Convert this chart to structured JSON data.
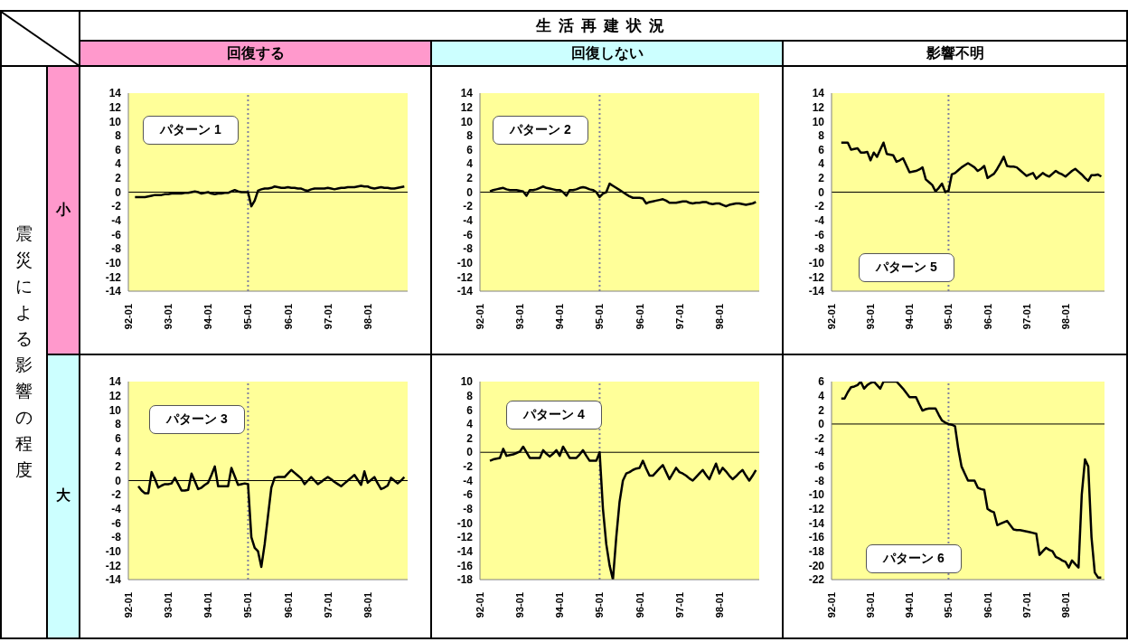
{
  "chart_data": [
    {
      "type": "other",
      "title": "生活再建状況",
      "annotations": [
        "回復する",
        "回復しない",
        "影響不明",
        "震災による影響の程度",
        "小",
        "大"
      ]
    },
    {
      "type": "line",
      "annotations": [
        "パターン 1"
      ],
      "ylim": [
        -14,
        14
      ],
      "yticks": [
        -14,
        -12,
        -10,
        -8,
        -6,
        -4,
        -2,
        0,
        2,
        4,
        6,
        8,
        10,
        12,
        14
      ],
      "grid": false,
      "marker": "none",
      "ref_lines": [
        {
          "axis": "x",
          "value": "95-01",
          "color": "#8080a0",
          "line_style": "dotted"
        },
        {
          "axis": "y",
          "value": 0,
          "color": "#000000",
          "line_style": "solid"
        }
      ],
      "categories": [
        "92-01",
        null,
        null,
        null,
        null,
        null,
        null,
        null,
        null,
        null,
        null,
        null,
        "93-01",
        null,
        null,
        null,
        null,
        null,
        null,
        null,
        null,
        null,
        null,
        null,
        "94-01",
        null,
        null,
        null,
        null,
        null,
        null,
        null,
        null,
        null,
        null,
        null,
        "95-01",
        null,
        null,
        null,
        null,
        null,
        null,
        null,
        null,
        null,
        null,
        null,
        "96-01",
        null,
        null,
        null,
        null,
        null,
        null,
        null,
        null,
        null,
        null,
        null,
        "97-01",
        null,
        null,
        null,
        null,
        null,
        null,
        null,
        null,
        null,
        null,
        null,
        "98-01",
        null,
        null,
        null,
        null,
        null,
        null,
        null,
        null,
        null,
        null,
        null
      ],
      "series": [
        {
          "color": "#000000",
          "values": [
            null,
            null,
            -0.7,
            -0.7,
            -0.7,
            -0.7,
            -0.6,
            -0.5,
            -0.4,
            -0.4,
            -0.4,
            -0.3,
            -0.3,
            -0.2,
            -0.2,
            -0.2,
            -0.2,
            -0.1,
            -0.1,
            0,
            0.1,
            0,
            -0.2,
            -0.1,
            0,
            -0.2,
            -0.3,
            -0.2,
            -0.2,
            -0.1,
            -0.1,
            0.1,
            0.3,
            0.1,
            0,
            0,
            0,
            -2,
            -1.2,
            0.2,
            0.4,
            0.5,
            0.5,
            0.6,
            0.8,
            0.7,
            0.6,
            0.6,
            0.7,
            0.6,
            0.6,
            0.5,
            0.5,
            0.3,
            0.2,
            0.4,
            0.5,
            0.5,
            0.5,
            0.5,
            0.6,
            0.5,
            0.4,
            0.5,
            0.6,
            0.6,
            0.7,
            0.7,
            0.7,
            0.8,
            0.9,
            0.8,
            0.8,
            0.6,
            0.5,
            0.6,
            0.7,
            0.6,
            0.6,
            0.5,
            0.5,
            0.6,
            0.7,
            0.8
          ]
        }
      ]
    },
    {
      "type": "line",
      "annotations": [
        "パターン 2"
      ],
      "ylim": [
        -14,
        14
      ],
      "yticks": [
        -14,
        -12,
        -10,
        -8,
        -6,
        -4,
        -2,
        0,
        2,
        4,
        6,
        8,
        10,
        12,
        14
      ],
      "grid": false,
      "marker": "none",
      "ref_lines": [
        {
          "axis": "x",
          "value": "95-01",
          "color": "#8080a0",
          "line_style": "dotted"
        },
        {
          "axis": "y",
          "value": 0,
          "color": "#000000",
          "line_style": "solid"
        }
      ],
      "categories": [
        "92-01",
        null,
        null,
        null,
        null,
        null,
        null,
        null,
        null,
        null,
        null,
        null,
        "93-01",
        null,
        null,
        null,
        null,
        null,
        null,
        null,
        null,
        null,
        null,
        null,
        "94-01",
        null,
        null,
        null,
        null,
        null,
        null,
        null,
        null,
        null,
        null,
        null,
        "95-01",
        null,
        null,
        null,
        null,
        null,
        null,
        null,
        null,
        null,
        null,
        null,
        "96-01",
        null,
        null,
        null,
        null,
        null,
        null,
        null,
        null,
        null,
        null,
        null,
        "97-01",
        null,
        null,
        null,
        null,
        null,
        null,
        null,
        null,
        null,
        null,
        null,
        "98-01",
        null,
        null,
        null,
        null,
        null,
        null,
        null,
        null,
        null,
        null,
        null
      ],
      "series": [
        {
          "color": "#000000",
          "values": [
            null,
            null,
            null,
            0.1,
            0.3,
            0.4,
            0.5,
            0.6,
            0.4,
            0.3,
            0.3,
            0.3,
            0.2,
            0.1,
            -0.5,
            0.3,
            0.3,
            0.4,
            0.6,
            0.8,
            0.6,
            0.5,
            0.4,
            0.3,
            0.3,
            0,
            -0.5,
            0.3,
            0.3,
            0.4,
            0.6,
            0.7,
            0.6,
            0.4,
            0.3,
            0,
            -0.7,
            -0.2,
            0,
            1.2,
            0.9,
            0.6,
            0.3,
            0,
            -0.3,
            -0.6,
            -0.8,
            -0.8,
            -0.8,
            -0.9,
            -1.6,
            -1.4,
            -1.3,
            -1.2,
            -1.1,
            -1.0,
            -1.2,
            -1.5,
            -1.5,
            -1.5,
            -1.4,
            -1.3,
            -1.3,
            -1.5,
            -1.6,
            -1.5,
            -1.5,
            -1.4,
            -1.4,
            -1.6,
            -1.7,
            -1.6,
            -1.6,
            -1.8,
            -2.0,
            -1.8,
            -1.7,
            -1.6,
            -1.6,
            -1.7,
            -1.8,
            -1.7,
            -1.6,
            -1.4
          ]
        }
      ]
    },
    {
      "type": "line",
      "annotations": [
        "パターン 5"
      ],
      "ylim": [
        -14,
        14
      ],
      "yticks": [
        -14,
        -12,
        -10,
        -8,
        -6,
        -4,
        -2,
        0,
        2,
        4,
        6,
        8,
        10,
        12,
        14
      ],
      "grid": false,
      "marker": "none",
      "ref_lines": [
        {
          "axis": "x",
          "value": "95-01",
          "color": "#8080a0",
          "line_style": "dotted"
        },
        {
          "axis": "y",
          "value": 0,
          "color": "#000000",
          "line_style": "solid"
        }
      ],
      "categories": [
        "92-01",
        null,
        null,
        null,
        null,
        null,
        null,
        null,
        null,
        null,
        null,
        null,
        "93-01",
        null,
        null,
        null,
        null,
        null,
        null,
        null,
        null,
        null,
        null,
        null,
        "94-01",
        null,
        null,
        null,
        null,
        null,
        null,
        null,
        null,
        null,
        null,
        null,
        "95-01",
        null,
        null,
        null,
        null,
        null,
        null,
        null,
        null,
        null,
        null,
        null,
        "96-01",
        null,
        null,
        null,
        null,
        null,
        null,
        null,
        null,
        null,
        null,
        null,
        "97-01",
        null,
        null,
        null,
        null,
        null,
        null,
        null,
        null,
        null,
        null,
        null,
        "98-01",
        null,
        null,
        null,
        null,
        null,
        null,
        null,
        null,
        null,
        null,
        null
      ],
      "series": [
        {
          "color": "#000000",
          "values": [
            null,
            null,
            null,
            7.0,
            7.0,
            7.0,
            6,
            6.1,
            6.2,
            5.6,
            5.6,
            5.7,
            4.5,
            5.6,
            5,
            6,
            7,
            5.4,
            5.3,
            5.2,
            4.3,
            4.5,
            4.8,
            3.8,
            2.8,
            2.9,
            3,
            3.2,
            3.5,
            1.8,
            1.4,
            1.0,
            0.1,
            0.6,
            1.2,
            0,
            0.2,
            2.5,
            2.7,
            3.1,
            3.5,
            3.8,
            4.1,
            3.8,
            3.5,
            3,
            3.3,
            3.7,
            2,
            2.3,
            2.6,
            3.3,
            4.1,
            5,
            3.7,
            3.6,
            3.6,
            3.5,
            3.1,
            2.7,
            2.3,
            2.5,
            2.7,
            1.9,
            2.3,
            2.7,
            2.4,
            2.2,
            2.6,
            3,
            2.7,
            2.5,
            2.2,
            2.6,
            3,
            3.3,
            2.9,
            2.5,
            2.0,
            1.6,
            2.4,
            2.4,
            2.5,
            2.2
          ]
        }
      ]
    },
    {
      "type": "line",
      "annotations": [
        "パターン 3"
      ],
      "ylim": [
        -14,
        14
      ],
      "yticks": [
        -14,
        -12,
        -10,
        -8,
        -6,
        -4,
        -2,
        0,
        2,
        4,
        6,
        8,
        10,
        12,
        14
      ],
      "grid": false,
      "marker": "none",
      "ref_lines": [
        {
          "axis": "x",
          "value": "95-01",
          "color": "#8080a0",
          "line_style": "dotted"
        },
        {
          "axis": "y",
          "value": 0,
          "color": "#000000",
          "line_style": "solid"
        }
      ],
      "categories": [
        "92-01",
        null,
        null,
        null,
        null,
        null,
        null,
        null,
        null,
        null,
        null,
        null,
        "93-01",
        null,
        null,
        null,
        null,
        null,
        null,
        null,
        null,
        null,
        null,
        null,
        "94-01",
        null,
        null,
        null,
        null,
        null,
        null,
        null,
        null,
        null,
        null,
        null,
        "95-01",
        null,
        null,
        null,
        null,
        null,
        null,
        null,
        null,
        null,
        null,
        null,
        "96-01",
        null,
        null,
        null,
        null,
        null,
        null,
        null,
        null,
        null,
        null,
        null,
        "97-01",
        null,
        null,
        null,
        null,
        null,
        null,
        null,
        null,
        null,
        null,
        null,
        "98-01",
        null,
        null,
        null,
        null,
        null,
        null,
        null,
        null,
        null,
        null,
        null
      ],
      "series": [
        {
          "color": "#000000",
          "values": [
            null,
            null,
            null,
            -0.8,
            -1.4,
            -1.8,
            -1.8,
            1.2,
            0.2,
            -1,
            -0.7,
            -0.5,
            -0.5,
            -0.4,
            0.4,
            -0.5,
            -1.4,
            -1.4,
            -1.3,
            1.0,
            -0.1,
            -1.2,
            -1.0,
            -0.6,
            -0.3,
            0.8,
            2.0,
            -0.8,
            -0.8,
            -0.8,
            -0.8,
            1.8,
            0.6,
            -0.6,
            -0.5,
            -0.4,
            -0.5,
            -8,
            -9.5,
            -10,
            -12.2,
            -9,
            -5,
            -1,
            0.4,
            0.5,
            0.5,
            0.5,
            1.0,
            1.5,
            1.1,
            0.7,
            0.3,
            -0.5,
            0,
            0.5,
            0,
            -0.5,
            -0.2,
            0.2,
            0.5,
            0.2,
            -0.2,
            -0.5,
            -0.8,
            -0.4,
            0,
            0.4,
            0.8,
            0.1,
            -0.6,
            1.3,
            -0.3,
            0.1,
            0.5,
            -0.4,
            -1.2,
            -1.0,
            -0.7,
            0.4,
            0,
            -0.4,
            0,
            0.5
          ]
        }
      ]
    },
    {
      "type": "line",
      "annotations": [
        "パターン 4"
      ],
      "ylim": [
        -18,
        10
      ],
      "yticks": [
        -18,
        -16,
        -14,
        -12,
        -10,
        -8,
        -6,
        -4,
        -2,
        0,
        2,
        4,
        6,
        8,
        10
      ],
      "grid": false,
      "marker": "none",
      "ref_lines": [
        {
          "axis": "x",
          "value": "95-01",
          "color": "#8080a0",
          "line_style": "dotted"
        },
        {
          "axis": "y",
          "value": 0,
          "color": "#000000",
          "line_style": "solid"
        }
      ],
      "categories": [
        "92-01",
        null,
        null,
        null,
        null,
        null,
        null,
        null,
        null,
        null,
        null,
        null,
        "93-01",
        null,
        null,
        null,
        null,
        null,
        null,
        null,
        null,
        null,
        null,
        null,
        "94-01",
        null,
        null,
        null,
        null,
        null,
        null,
        null,
        null,
        null,
        null,
        null,
        "95-01",
        null,
        null,
        null,
        null,
        null,
        null,
        null,
        null,
        null,
        null,
        null,
        "96-01",
        null,
        null,
        null,
        null,
        null,
        null,
        null,
        null,
        null,
        null,
        null,
        "97-01",
        null,
        null,
        null,
        null,
        null,
        null,
        null,
        null,
        null,
        null,
        null,
        "98-01",
        null,
        null,
        null,
        null,
        null,
        null,
        null,
        null,
        null,
        null,
        null
      ],
      "series": [
        {
          "color": "#000000",
          "values": [
            null,
            null,
            null,
            -1.2,
            -1.0,
            -0.9,
            -0.8,
            0.5,
            -0.5,
            -0.4,
            -0.3,
            -0.1,
            0.1,
            0.8,
            0,
            -0.8,
            -0.8,
            -0.8,
            -0.8,
            0.3,
            -0.2,
            -0.6,
            -0.2,
            0.3,
            -0.5,
            0.8,
            0,
            -0.8,
            -0.8,
            -0.8,
            -0.3,
            0.3,
            -0.5,
            -1.2,
            -1.2,
            -1.2,
            0,
            -8,
            -13,
            -16,
            -18,
            -12,
            -7,
            -4,
            -3,
            -2.8,
            -2.5,
            -2.3,
            -2.2,
            -1.2,
            -2.3,
            -3.3,
            -3.3,
            -2.8,
            -2.3,
            -1.8,
            -2.8,
            -3.8,
            -3.0,
            -2.2,
            -2.8,
            -3.0,
            -3.3,
            -3.7,
            -4,
            -3.5,
            -3.0,
            -2.5,
            -3.2,
            -3.8,
            -2.7,
            -1.6,
            -3,
            -2.2,
            -2.7,
            -3.3,
            -3.8,
            -3.4,
            -2.9,
            -2.5,
            -3.3,
            -4,
            -3.3,
            -2.5
          ]
        }
      ]
    },
    {
      "type": "line",
      "annotations": [
        "パターン 6"
      ],
      "ylim": [
        -22,
        6
      ],
      "yticks": [
        -22,
        -20,
        -18,
        -16,
        -14,
        -12,
        -10,
        -8,
        -6,
        -4,
        -2,
        0,
        2,
        4,
        6
      ],
      "grid": false,
      "marker": "none",
      "ref_lines": [
        {
          "axis": "x",
          "value": "95-01",
          "color": "#8080a0",
          "line_style": "dotted"
        },
        {
          "axis": "y",
          "value": 0,
          "color": "#000000",
          "line_style": "solid"
        }
      ],
      "categories": [
        "92-01",
        null,
        null,
        null,
        null,
        null,
        null,
        null,
        null,
        null,
        null,
        null,
        "93-01",
        null,
        null,
        null,
        null,
        null,
        null,
        null,
        null,
        null,
        null,
        null,
        "94-01",
        null,
        null,
        null,
        null,
        null,
        null,
        null,
        null,
        null,
        null,
        null,
        "95-01",
        null,
        null,
        null,
        null,
        null,
        null,
        null,
        null,
        null,
        null,
        null,
        "96-01",
        null,
        null,
        null,
        null,
        null,
        null,
        null,
        null,
        null,
        null,
        null,
        "97-01",
        null,
        null,
        null,
        null,
        null,
        null,
        null,
        null,
        null,
        null,
        null,
        "98-01",
        null,
        null,
        null,
        null,
        null,
        null,
        null,
        null,
        null,
        null,
        null
      ],
      "series": [
        {
          "color": "#000000",
          "values": [
            null,
            null,
            null,
            3.6,
            3.6,
            4.5,
            5.2,
            5.3,
            5.5,
            6,
            5,
            5.5,
            5.8,
            6,
            5.5,
            5,
            6,
            6,
            6,
            6,
            6,
            5.5,
            5,
            4.4,
            3.8,
            3.8,
            3.8,
            2.8,
            1.9,
            2.1,
            2.2,
            2.2,
            2.2,
            1.3,
            0.5,
            0.2,
            0,
            -0.1,
            -0.3,
            -3.5,
            -6,
            -7,
            -8,
            -8,
            -8,
            -9,
            -9.2,
            -9.3,
            -12,
            -12.3,
            -12.5,
            -14.3,
            -14.1,
            -13.9,
            -13.7,
            -14.3,
            -14.9,
            -15,
            -15,
            -15.1,
            -15.2,
            -15.3,
            -15.4,
            -15.5,
            -18.5,
            -18,
            -17.5,
            -17.8,
            -18,
            -18.8,
            -19,
            -19.3,
            -19.5,
            -20.3,
            -19.3,
            -19.8,
            -20.3,
            -10,
            -5,
            -6,
            -16,
            -21,
            -21.7,
            -21.7
          ]
        }
      ]
    }
  ]
}
